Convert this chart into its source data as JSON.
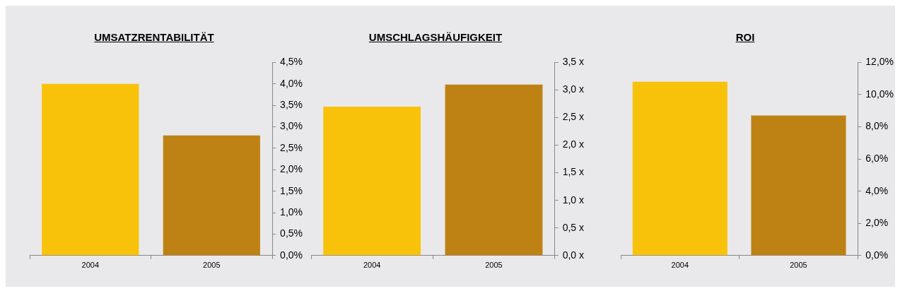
{
  "chart_data": [
    {
      "type": "bar",
      "title": "UMSATZRENTABILITÄT",
      "categories": [
        "2004",
        "2005"
      ],
      "values": [
        4.0,
        2.8
      ],
      "colors": [
        "#f9c20a",
        "#be8214"
      ],
      "ylim": [
        0,
        4.5
      ],
      "yticks": [
        {
          "value": 0,
          "label": "0,0%"
        },
        {
          "value": 0.5,
          "label": "0,5%"
        },
        {
          "value": 1,
          "label": "1,0%"
        },
        {
          "value": 1.5,
          "label": "1,5%"
        },
        {
          "value": 2,
          "label": "2,0%"
        },
        {
          "value": 2.5,
          "label": "2,5%"
        },
        {
          "value": 3,
          "label": "3,0%"
        },
        {
          "value": 3.5,
          "label": "3,5%"
        },
        {
          "value": 4,
          "label": "4,0%"
        },
        {
          "value": 4.5,
          "label": "4,5%"
        }
      ],
      "legend": false
    },
    {
      "type": "bar",
      "title": "UMSCHLAGSHÄUFIGKEIT",
      "categories": [
        "2004",
        "2005"
      ],
      "values": [
        2.7,
        3.1
      ],
      "colors": [
        "#f9c20a",
        "#be8214"
      ],
      "ylim": [
        0,
        3.5
      ],
      "yticks": [
        {
          "value": 0,
          "label": "0,0 x"
        },
        {
          "value": 0.5,
          "label": "0,5 x"
        },
        {
          "value": 1,
          "label": "1,0 x"
        },
        {
          "value": 1.5,
          "label": "1,5 x"
        },
        {
          "value": 2,
          "label": "2,0 x"
        },
        {
          "value": 2.5,
          "label": "2,5 x"
        },
        {
          "value": 3,
          "label": "3,0 x"
        },
        {
          "value": 3.5,
          "label": "3,5 x"
        }
      ],
      "legend": false
    },
    {
      "type": "bar",
      "title": "ROI",
      "categories": [
        "2004",
        "2005"
      ],
      "values": [
        10.8,
        8.7
      ],
      "colors": [
        "#f9c20a",
        "#be8214"
      ],
      "ylim": [
        0,
        12
      ],
      "yticks": [
        {
          "value": 0,
          "label": "0,0%"
        },
        {
          "value": 2,
          "label": "2,0%"
        },
        {
          "value": 4,
          "label": "4,0%"
        },
        {
          "value": 6,
          "label": "6,0%"
        },
        {
          "value": 8,
          "label": "8,0%"
        },
        {
          "value": 10,
          "label": "10,0%"
        },
        {
          "value": 12,
          "label": "12,0%"
        }
      ],
      "legend": false
    }
  ]
}
